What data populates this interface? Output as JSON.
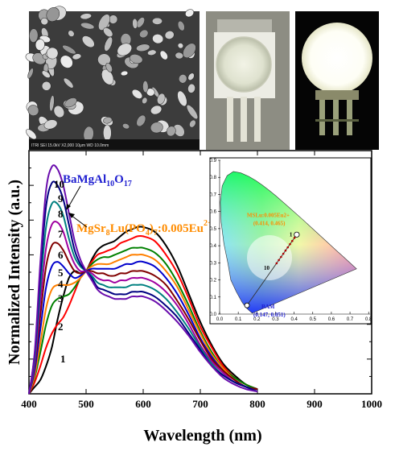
{
  "photos": {
    "sem_caption": "ITRI          SEI   15.0kV   X2,000      10μm    WD 10.0mm"
  },
  "chart_data": [
    {
      "type": "line",
      "xlabel": "Wavelength (nm)",
      "ylabel": "Normalized Intensity (a.u.)",
      "xlim": [
        400,
        1000
      ],
      "xticks": [
        400,
        500,
        600,
        700,
        800,
        900,
        1000
      ],
      "ylim": [
        0,
        1.05
      ],
      "grid": false,
      "annotations": {
        "bam_label": "BaMgAl10O17",
        "msl_label": "MgSr8Lu(PO4)7:0.005Eu2+"
      },
      "x": [
        400,
        410,
        420,
        430,
        440,
        450,
        460,
        470,
        480,
        490,
        500,
        510,
        520,
        530,
        540,
        550,
        560,
        570,
        580,
        590,
        600,
        620,
        640,
        660,
        680,
        700,
        720,
        740,
        760,
        780,
        800
      ],
      "series": [
        {
          "name": "1",
          "color": "#000000",
          "values": [
            0.0,
            0.03,
            0.06,
            0.12,
            0.2,
            0.32,
            0.42,
            0.5,
            0.53,
            0.52,
            0.53,
            0.58,
            0.62,
            0.64,
            0.65,
            0.66,
            0.68,
            0.7,
            0.71,
            0.72,
            0.72,
            0.7,
            0.64,
            0.55,
            0.43,
            0.31,
            0.21,
            0.13,
            0.08,
            0.04,
            0.02
          ]
        },
        {
          "name": "2",
          "color": "#ff0000",
          "values": [
            0.0,
            0.05,
            0.12,
            0.2,
            0.26,
            0.3,
            0.33,
            0.38,
            0.44,
            0.5,
            0.53,
            0.57,
            0.6,
            0.61,
            0.62,
            0.63,
            0.65,
            0.66,
            0.67,
            0.68,
            0.68,
            0.66,
            0.6,
            0.52,
            0.41,
            0.29,
            0.2,
            0.12,
            0.07,
            0.04,
            0.02
          ]
        },
        {
          "name": "3",
          "color": "#008000",
          "values": [
            0.0,
            0.07,
            0.18,
            0.3,
            0.38,
            0.41,
            0.42,
            0.43,
            0.46,
            0.5,
            0.53,
            0.56,
            0.58,
            0.59,
            0.59,
            0.6,
            0.61,
            0.62,
            0.63,
            0.63,
            0.63,
            0.61,
            0.56,
            0.48,
            0.38,
            0.27,
            0.18,
            0.11,
            0.07,
            0.04,
            0.02
          ]
        },
        {
          "name": "4",
          "color": "#ff8000",
          "values": [
            0.0,
            0.08,
            0.22,
            0.37,
            0.45,
            0.47,
            0.47,
            0.47,
            0.48,
            0.5,
            0.53,
            0.55,
            0.56,
            0.56,
            0.56,
            0.57,
            0.58,
            0.59,
            0.6,
            0.6,
            0.6,
            0.58,
            0.53,
            0.46,
            0.36,
            0.26,
            0.17,
            0.11,
            0.06,
            0.03,
            0.02
          ]
        },
        {
          "name": "5",
          "color": "#0000cc",
          "values": [
            0.0,
            0.1,
            0.28,
            0.46,
            0.55,
            0.57,
            0.55,
            0.52,
            0.5,
            0.51,
            0.53,
            0.54,
            0.54,
            0.54,
            0.54,
            0.54,
            0.55,
            0.56,
            0.56,
            0.57,
            0.57,
            0.55,
            0.5,
            0.43,
            0.34,
            0.24,
            0.16,
            0.1,
            0.06,
            0.03,
            0.02
          ]
        },
        {
          "name": "6",
          "color": "#800000",
          "values": [
            0.0,
            0.12,
            0.34,
            0.55,
            0.64,
            0.65,
            0.62,
            0.57,
            0.53,
            0.52,
            0.53,
            0.53,
            0.52,
            0.52,
            0.51,
            0.51,
            0.52,
            0.52,
            0.53,
            0.53,
            0.53,
            0.51,
            0.47,
            0.4,
            0.32,
            0.23,
            0.15,
            0.1,
            0.06,
            0.03,
            0.02
          ]
        },
        {
          "name": "7",
          "color": "#a000a0",
          "values": [
            0.0,
            0.13,
            0.4,
            0.63,
            0.73,
            0.74,
            0.7,
            0.62,
            0.56,
            0.53,
            0.53,
            0.52,
            0.5,
            0.49,
            0.49,
            0.48,
            0.49,
            0.49,
            0.5,
            0.5,
            0.5,
            0.48,
            0.44,
            0.38,
            0.3,
            0.21,
            0.14,
            0.09,
            0.05,
            0.03,
            0.01
          ]
        },
        {
          "name": "8",
          "color": "#008080",
          "values": [
            0.0,
            0.15,
            0.46,
            0.72,
            0.82,
            0.82,
            0.77,
            0.67,
            0.59,
            0.55,
            0.53,
            0.51,
            0.48,
            0.47,
            0.46,
            0.46,
            0.46,
            0.46,
            0.47,
            0.47,
            0.47,
            0.45,
            0.41,
            0.35,
            0.28,
            0.2,
            0.13,
            0.08,
            0.05,
            0.03,
            0.01
          ]
        },
        {
          "name": "9",
          "color": "#000080",
          "values": [
            0.0,
            0.17,
            0.52,
            0.81,
            0.91,
            0.9,
            0.84,
            0.73,
            0.62,
            0.56,
            0.53,
            0.5,
            0.46,
            0.45,
            0.44,
            0.43,
            0.43,
            0.43,
            0.44,
            0.44,
            0.44,
            0.42,
            0.38,
            0.33,
            0.26,
            0.19,
            0.12,
            0.08,
            0.05,
            0.03,
            0.01
          ]
        },
        {
          "name": "10",
          "color": "#6a0dad",
          "values": [
            0.0,
            0.18,
            0.57,
            0.88,
            0.98,
            0.97,
            0.9,
            0.78,
            0.66,
            0.58,
            0.53,
            0.49,
            0.45,
            0.43,
            0.42,
            0.41,
            0.41,
            0.41,
            0.42,
            0.42,
            0.42,
            0.4,
            0.36,
            0.31,
            0.25,
            0.18,
            0.12,
            0.07,
            0.04,
            0.02,
            0.01
          ]
        }
      ]
    },
    {
      "type": "scatter",
      "inset": "CIE 1931 chromaticity diagram",
      "xlim": [
        0.0,
        0.8
      ],
      "ylim": [
        0.0,
        0.9
      ],
      "xticks": [
        0.0,
        0.1,
        0.2,
        0.3,
        0.4,
        0.5,
        0.6,
        0.7,
        0.8
      ],
      "yticks": [
        0.0,
        0.1,
        0.2,
        0.3,
        0.4,
        0.5,
        0.6,
        0.7,
        0.8,
        0.9
      ],
      "points": [
        {
          "label": "BAM",
          "coord_label": "(0.147, 0.051)",
          "x": 0.147,
          "y": 0.051
        },
        {
          "label": "MSLu:0.005Eu2+",
          "coord_label": "(0.414, 0.465)",
          "x": 0.414,
          "y": 0.465
        }
      ],
      "path_labels": {
        "start": "1",
        "end": "10"
      }
    }
  ]
}
